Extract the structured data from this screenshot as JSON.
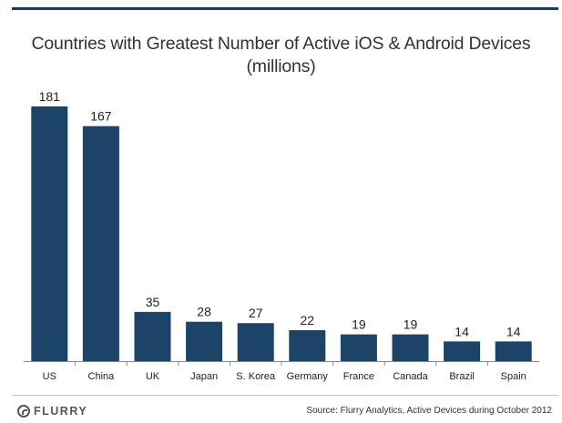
{
  "title_line1": "Countries with Greatest Number of Active iOS & Android Devices",
  "title_line2": "(millions)",
  "logo_text": "FLURRY",
  "source": "Source: Flurry Analytics, Active Devices during October 2012",
  "colors": {
    "bar": "#1b4468",
    "axis": "#888888",
    "rule": "#1b3a5c"
  },
  "chart_data": {
    "type": "bar",
    "categories": [
      "US",
      "China",
      "UK",
      "Japan",
      "S. Korea",
      "Germany",
      "France",
      "Canada",
      "Brazil",
      "Spain"
    ],
    "values": [
      181,
      167,
      35,
      28,
      27,
      22,
      19,
      19,
      14,
      14
    ],
    "title": "Countries with Greatest Number of Active iOS & Android Devices (millions)",
    "xlabel": "",
    "ylabel": "",
    "ylim": [
      0,
      181
    ],
    "grid": false,
    "legend": "none",
    "data_labels": true
  }
}
